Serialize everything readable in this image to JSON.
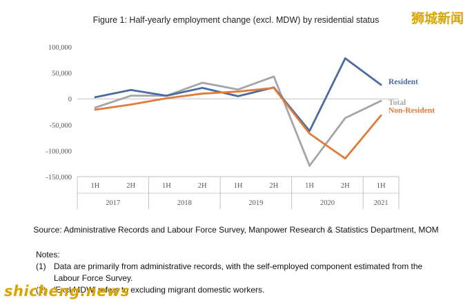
{
  "watermark_top": "狮城新闻",
  "watermark_bottom": "shicheng.news",
  "source": "Source: Administrative Records and Labour Force Survey, Manpower Research & Statistics Department, MOM",
  "notes": {
    "heading": "Notes:",
    "items": [
      {
        "num": "(1)",
        "text": "Data are primarily from administrative records, with the self-employed component estimated from the Labour Force Survey."
      },
      {
        "num": "(2)",
        "text": "'Excl MDW' refers to excluding migrant domestic workers."
      }
    ]
  },
  "colors": {
    "resident": "#4a6aa0",
    "total": "#a5a5a5",
    "non_resident": "#e07b39",
    "axis": "#bfbfbf",
    "tick_text": "#555555"
  },
  "chart_data": {
    "type": "line",
    "title": "Figure 1: Half-yearly employment change (excl. MDW) by residential status",
    "x": [
      "1H 2017",
      "2H 2017",
      "1H 2018",
      "2H 2018",
      "1H 2019",
      "2H 2019",
      "1H 2020",
      "2H 2020",
      "1H 2021"
    ],
    "half_labels": [
      "1H",
      "2H",
      "1H",
      "2H",
      "1H",
      "2H",
      "1H",
      "2H",
      "1H"
    ],
    "years": [
      {
        "label": "2017",
        "span": 2
      },
      {
        "label": "2018",
        "span": 2
      },
      {
        "label": "2019",
        "span": 2
      },
      {
        "label": "2020",
        "span": 2
      },
      {
        "label": "2021",
        "span": 1
      }
    ],
    "y_ticks": [
      100000,
      50000,
      0,
      -50000,
      -100000,
      -150000
    ],
    "y_tick_labels": [
      "100,000",
      "50,000",
      "0",
      "-50,000",
      "-100,000",
      "-150,000"
    ],
    "ylim": [
      -150000,
      100000
    ],
    "series": [
      {
        "key": "total",
        "name": "Total",
        "values": [
          -17000,
          6000,
          6000,
          31000,
          18000,
          43000,
          -129000,
          -37000,
          -4000
        ]
      },
      {
        "key": "resident",
        "name": "Resident",
        "values": [
          3000,
          17000,
          6000,
          21000,
          5000,
          22000,
          -62000,
          78000,
          27000
        ]
      },
      {
        "key": "non_resident",
        "name": "Non-Resident",
        "values": [
          -21000,
          -11000,
          1000,
          10000,
          14000,
          21000,
          -67000,
          -115000,
          -32000
        ]
      }
    ],
    "legend": "labels at line ends (right)"
  }
}
